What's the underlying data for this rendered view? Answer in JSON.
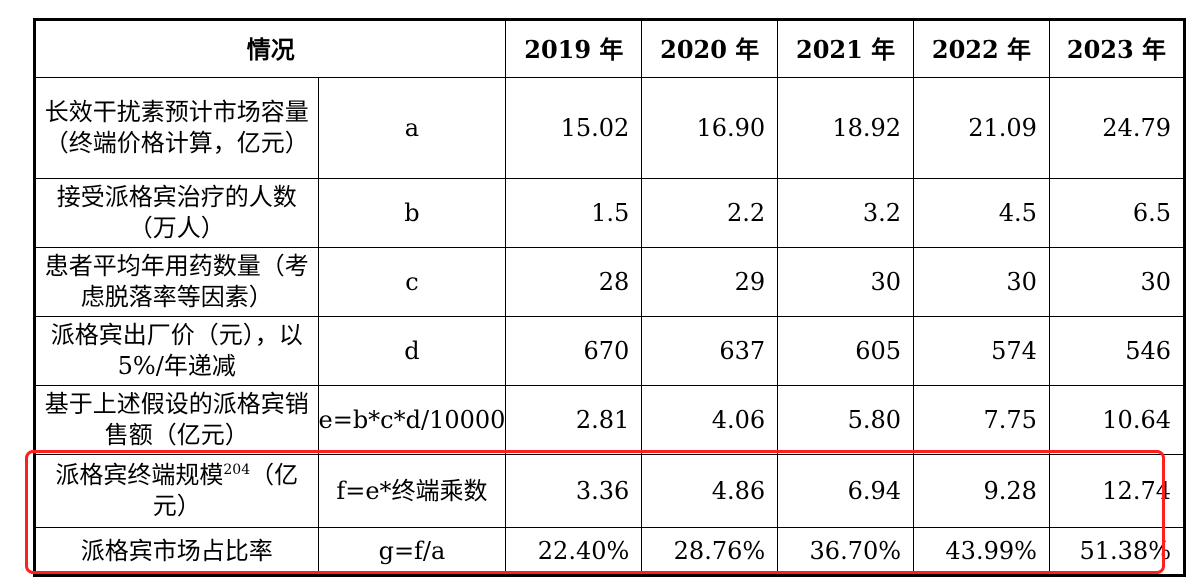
{
  "table": {
    "header": {
      "situation": "情况",
      "years": [
        "2019 年",
        "2020 年",
        "2021 年",
        "2022 年",
        "2023 年"
      ]
    },
    "rows": [
      {
        "desc": "长效干扰素预计市场容量（终端价格计算，亿元）",
        "formula": "a",
        "values": [
          "15.02",
          "16.90",
          "18.92",
          "21.09",
          "24.79"
        ]
      },
      {
        "desc": "接受派格宾治疗的人数（万人）",
        "formula": "b",
        "values": [
          "1.5",
          "2.2",
          "3.2",
          "4.5",
          "6.5"
        ]
      },
      {
        "desc": "患者平均年用药数量（考虑脱落率等因素）",
        "formula": "c",
        "values": [
          "28",
          "29",
          "30",
          "30",
          "30"
        ]
      },
      {
        "desc": "派格宾出厂价（元），以 5%/年递减",
        "formula": "d",
        "values": [
          "670",
          "637",
          "605",
          "574",
          "546"
        ]
      },
      {
        "desc": "基于上述假设的派格宾销售额（亿元）",
        "formula": "e=b*c*d/10000",
        "values": [
          "2.81",
          "4.06",
          "5.80",
          "7.75",
          "10.64"
        ]
      },
      {
        "desc_a": "派格宾终端规模",
        "footnote": "204",
        "desc_b": "（亿元）",
        "formula": "f=e*终端乘数",
        "values": [
          "3.36",
          "4.86",
          "6.94",
          "9.28",
          "12.74"
        ]
      },
      {
        "desc": "派格宾市场占比率",
        "formula": "g=f/a",
        "values": [
          "22.40%",
          "28.76%",
          "36.70%",
          "43.99%",
          "51.38%"
        ]
      }
    ]
  },
  "highlight": {
    "color": "#ff1f1f"
  }
}
